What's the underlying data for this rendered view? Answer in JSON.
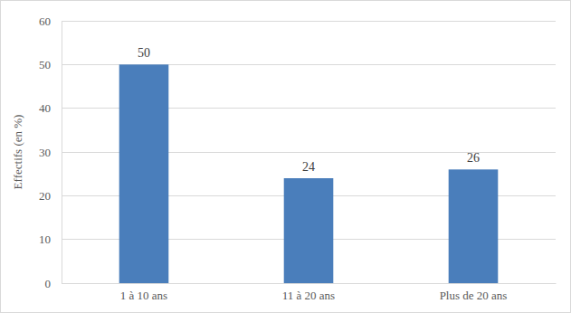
{
  "chart_data": {
    "type": "bar",
    "y_label": "Effectifs (en %)",
    "categories": [
      "1 à 10 ans",
      "11 à 20 ans",
      "Plus de 20 ans"
    ],
    "values": [
      50,
      24,
      26
    ],
    "color": "#4a7ebb",
    "ylim": [
      0,
      60
    ],
    "yticks": [
      0,
      10,
      20,
      30,
      40,
      50,
      60
    ],
    "grid": true,
    "data_labels": true
  }
}
